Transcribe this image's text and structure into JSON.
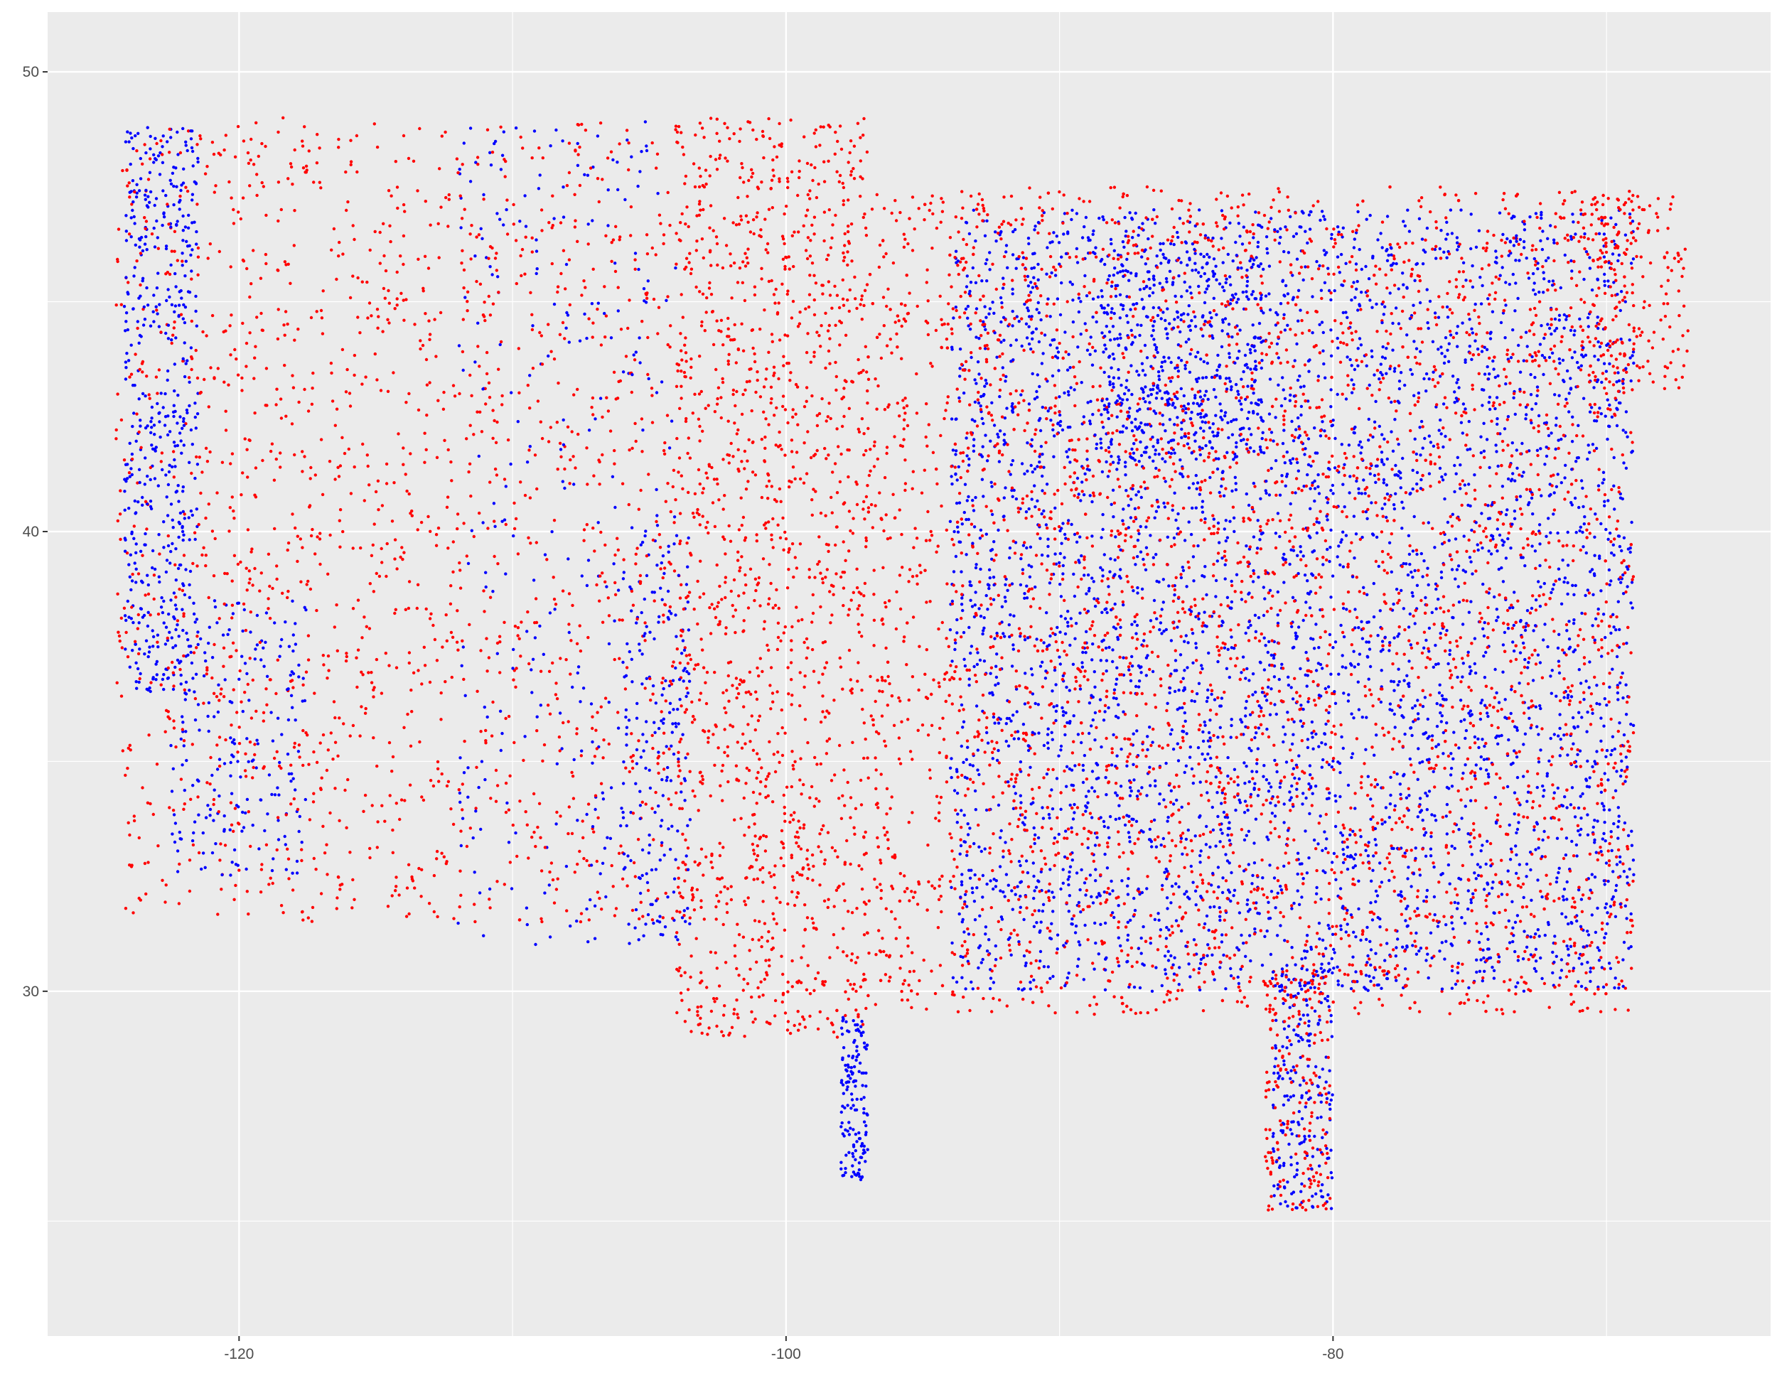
{
  "chart_data": {
    "type": "scatter",
    "title": "",
    "xlabel": "",
    "ylabel": "",
    "xlim": [
      -127,
      -64
    ],
    "ylim": [
      22.5,
      51.3
    ],
    "x_ticks": [
      -120,
      -100,
      -80
    ],
    "x_tick_labels": [
      "-120",
      "-100",
      "-80"
    ],
    "y_ticks": [
      30,
      40,
      50
    ],
    "y_tick_labels": [
      "30",
      "40",
      "50"
    ],
    "grid": true,
    "legend": "none",
    "colors": {
      "panel": "#ebebeb",
      "grid": "#ffffff",
      "series_a": "#ff0000",
      "series_b": "#0000ff"
    },
    "series": [
      {
        "color": "#0000ff",
        "regions": [
          {
            "lon": [
              -124.2,
              -121.5
            ],
            "lat": [
              36.5,
              48.8
            ],
            "weight": 14,
            "spread": 1
          },
          {
            "lon": [
              -122.5,
              -117.5
            ],
            "lat": [
              32.5,
              38.5
            ],
            "weight": 6,
            "spread": 1
          },
          {
            "lon": [
              -98,
              -97.0
            ],
            "lat": [
              25.9,
              29.5
            ],
            "weight": 4,
            "spread": 1
          },
          {
            "lon": [
              -94,
              -69
            ],
            "lat": [
              30,
              47
            ],
            "weight": 120,
            "spread": 1
          },
          {
            "lon": [
              -88.5,
              -82.5
            ],
            "lat": [
              41.5,
              46
            ],
            "weight": 10,
            "spread": 1
          },
          {
            "lon": [
              -82.2,
              -80.0
            ],
            "lat": [
              25.2,
              30.5
            ],
            "weight": 6,
            "spread": 1
          },
          {
            "lon": [
              -106,
              -103.5
            ],
            "lat": [
              31,
              40
            ],
            "weight": 5,
            "spread": 1
          },
          {
            "lon": [
              -112,
              -104
            ],
            "lat": [
              31,
              49
            ],
            "weight": 8,
            "spread": 1
          }
        ]
      },
      {
        "color": "#ff0000",
        "regions": [
          {
            "lon": [
              -124.5,
              -104
            ],
            "lat": [
              31.5,
              49
            ],
            "weight": 45,
            "spread": 1
          },
          {
            "lon": [
              -104,
              -97
            ],
            "lat": [
              29,
              49
            ],
            "weight": 40,
            "spread": 1
          },
          {
            "lon": [
              -97,
              -69
            ],
            "lat": [
              29.5,
              47.5
            ],
            "weight": 110,
            "spread": 1
          },
          {
            "lon": [
              -82.5,
              -80.1
            ],
            "lat": [
              25.2,
              30.5
            ],
            "weight": 5,
            "spread": 1
          },
          {
            "lon": [
              -71,
              -67
            ],
            "lat": [
              43,
              47.3
            ],
            "weight": 5,
            "spread": 1
          }
        ]
      }
    ]
  }
}
